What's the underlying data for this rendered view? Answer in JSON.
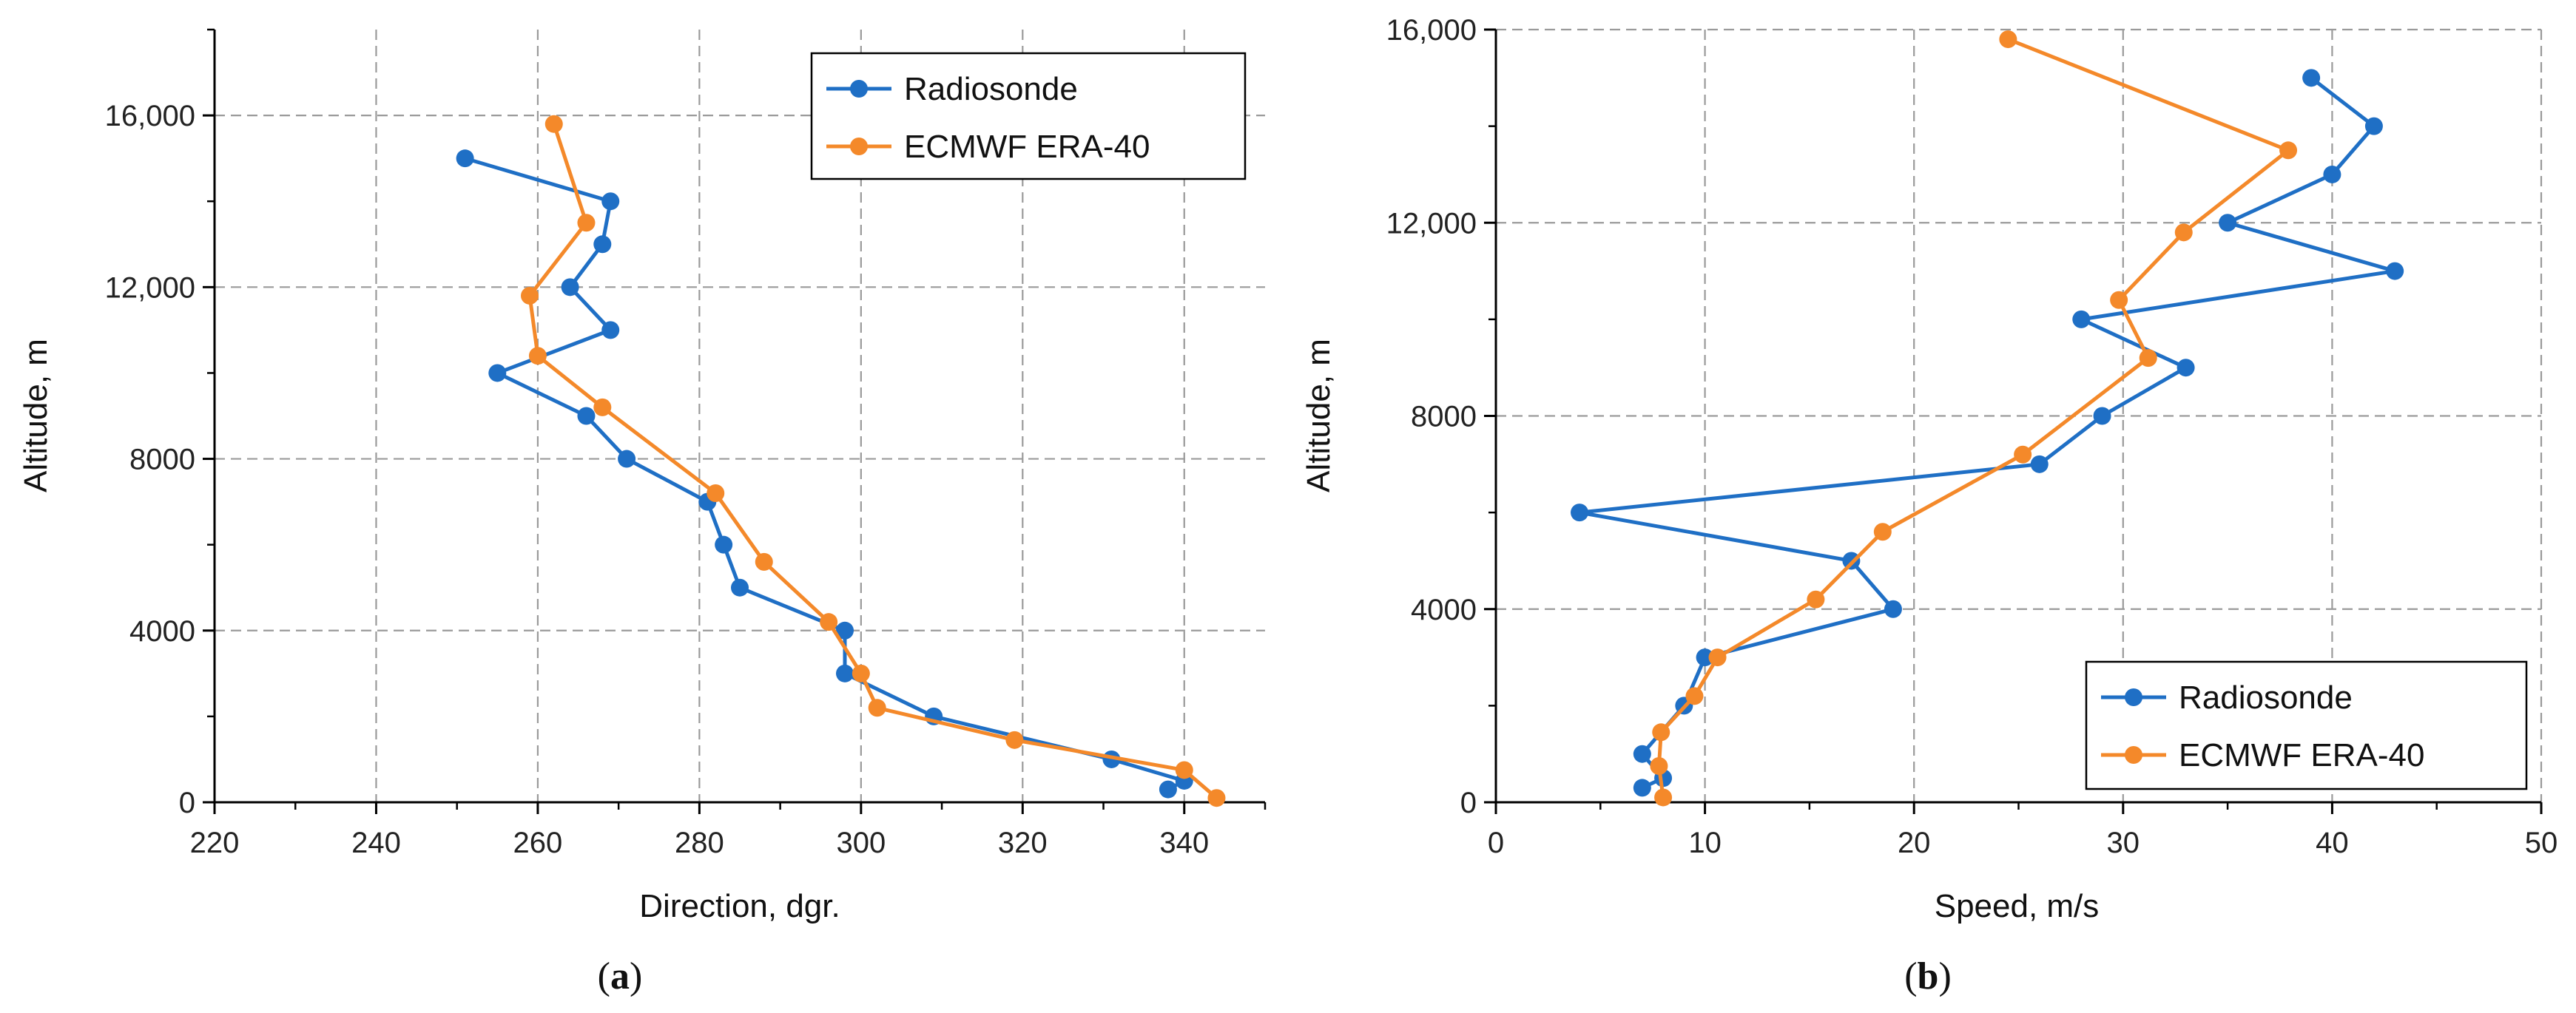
{
  "chart_data": [
    {
      "type": "line",
      "panel_label": {
        "open": "(",
        "letter": "a",
        "close": ")"
      },
      "title": "",
      "xlabel": "Direction, dgr.",
      "ylabel": "Altitude, m",
      "xlim": [
        220,
        350
      ],
      "ylim": [
        0,
        18000
      ],
      "xticks": [
        220,
        240,
        260,
        280,
        300,
        320,
        340
      ],
      "xtick_labels": [
        "220",
        "240",
        "260",
        "280",
        "300",
        "320",
        "340"
      ],
      "yticks": [
        0,
        4000,
        8000,
        12000,
        16000
      ],
      "ytick_labels": [
        "0",
        "4000",
        "8000",
        "12,000",
        "16,000"
      ],
      "grid": true,
      "legend_position": "top-right",
      "series": [
        {
          "name": "Radiosonde",
          "color": "#1F6FC5",
          "points": [
            [
              338,
              300
            ],
            [
              340,
              500
            ],
            [
              331,
              1000
            ],
            [
              309,
              2000
            ],
            [
              298,
              3000
            ],
            [
              298,
              4000
            ],
            [
              285,
              5000
            ],
            [
              283,
              6000
            ],
            [
              281,
              7000
            ],
            [
              271,
              8000
            ],
            [
              266,
              9000
            ],
            [
              255,
              10000
            ],
            [
              269,
              11000
            ],
            [
              264,
              12000
            ],
            [
              268,
              13000
            ],
            [
              269,
              14000
            ],
            [
              251,
              15000
            ]
          ]
        },
        {
          "name": "ECMWF ERA-40",
          "color": "#F4892A",
          "points": [
            [
              344,
              100
            ],
            [
              340,
              750
            ],
            [
              319,
              1450
            ],
            [
              302,
              2200
            ],
            [
              300,
              3000
            ],
            [
              296,
              4200
            ],
            [
              288,
              5600
            ],
            [
              282,
              7200
            ],
            [
              268,
              9200
            ],
            [
              260,
              10400
            ],
            [
              259,
              11800
            ],
            [
              266,
              13500
            ],
            [
              262,
              15800
            ]
          ]
        }
      ]
    },
    {
      "type": "line",
      "panel_label": {
        "open": "(",
        "letter": "b",
        "close": ")"
      },
      "title": "",
      "xlabel": "Speed, m/s",
      "ylabel": "Altitude, m",
      "xlim": [
        0,
        50
      ],
      "ylim": [
        0,
        16000
      ],
      "xticks": [
        0,
        10,
        20,
        30,
        40,
        50
      ],
      "xtick_labels": [
        "0",
        "10",
        "20",
        "30",
        "40",
        "50"
      ],
      "yticks": [
        0,
        4000,
        8000,
        12000,
        16000
      ],
      "ytick_labels": [
        "0",
        "4000",
        "8000",
        "12,000",
        "16,000"
      ],
      "grid": true,
      "legend_position": "bottom-right",
      "series": [
        {
          "name": "Radiosonde",
          "color": "#1F6FC5",
          "points": [
            [
              7,
              300
            ],
            [
              8,
              500
            ],
            [
              7,
              1000
            ],
            [
              9,
              2000
            ],
            [
              10,
              3000
            ],
            [
              19,
              4000
            ],
            [
              17,
              5000
            ],
            [
              4,
              6000
            ],
            [
              26,
              7000
            ],
            [
              29,
              8000
            ],
            [
              33,
              9000
            ],
            [
              28,
              10000
            ],
            [
              43,
              11000
            ],
            [
              35,
              12000
            ],
            [
              40,
              13000
            ],
            [
              42,
              14000
            ],
            [
              39,
              15000
            ]
          ]
        },
        {
          "name": "ECMWF ERA-40",
          "color": "#F4892A",
          "points": [
            [
              8,
              100
            ],
            [
              7.8,
              750
            ],
            [
              7.9,
              1450
            ],
            [
              9.5,
              2200
            ],
            [
              10.6,
              3000
            ],
            [
              15.3,
              4200
            ],
            [
              18.5,
              5600
            ],
            [
              25.2,
              7200
            ],
            [
              31.2,
              9200
            ],
            [
              29.8,
              10400
            ],
            [
              32.9,
              11800
            ],
            [
              37.9,
              13500
            ],
            [
              24.5,
              15800
            ]
          ]
        }
      ]
    }
  ]
}
